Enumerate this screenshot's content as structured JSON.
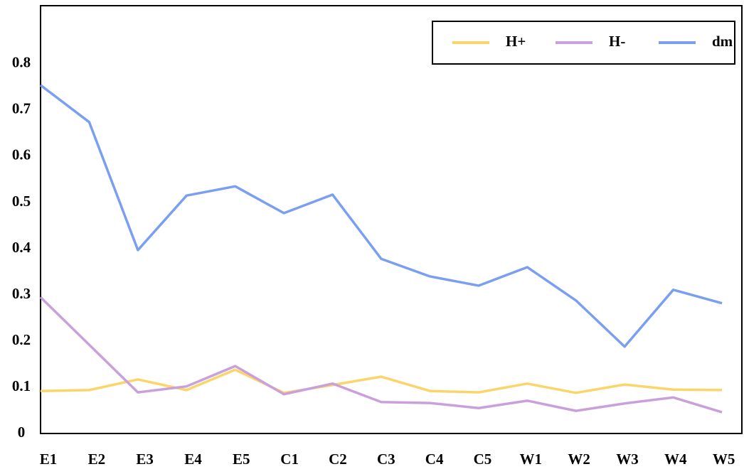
{
  "chart_data": {
    "type": "line",
    "categories": [
      "E1",
      "E2",
      "E3",
      "E4",
      "E5",
      "C1",
      "C2",
      "C3",
      "C4",
      "C5",
      "W1",
      "W2",
      "W3",
      "W4",
      "W5"
    ],
    "series": [
      {
        "name": "H+",
        "color": "#fcd56a",
        "values": [
          0.092,
          0.094,
          0.117,
          0.094,
          0.138,
          0.088,
          0.105,
          0.123,
          0.092,
          0.089,
          0.108,
          0.088,
          0.106,
          0.095,
          0.094
        ]
      },
      {
        "name": "H-",
        "color": "#c9a0dc",
        "values": [
          0.295,
          0.192,
          0.089,
          0.102,
          0.146,
          0.085,
          0.108,
          0.068,
          0.066,
          0.055,
          0.071,
          0.049,
          0.065,
          0.078,
          0.046
        ]
      },
      {
        "name": "dm",
        "color": "#7b9ff0",
        "values": [
          0.754,
          0.674,
          0.397,
          0.515,
          0.535,
          0.477,
          0.517,
          0.378,
          0.34,
          0.32,
          0.36,
          0.288,
          0.188,
          0.311,
          0.282
        ]
      }
    ],
    "ylim": [
      0,
      0.926
    ],
    "yticks": [
      0,
      0.1,
      0.2,
      0.3,
      0.4,
      0.5,
      0.6,
      0.7,
      0.8
    ],
    "grid": false,
    "legend": "upper right"
  }
}
